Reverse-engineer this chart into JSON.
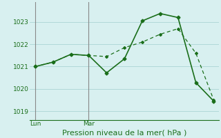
{
  "line1_x": [
    0,
    1,
    2,
    3,
    4,
    5,
    6,
    7,
    8,
    9,
    10
  ],
  "line1_y": [
    1021.0,
    1021.2,
    1021.55,
    1021.5,
    1020.72,
    1021.35,
    1023.05,
    1023.38,
    1023.2,
    1020.28,
    1019.45
  ],
  "line2_x": [
    0,
    1,
    2,
    3,
    4,
    5,
    6,
    7,
    8,
    9,
    10
  ],
  "line2_y": [
    1021.0,
    1021.2,
    1021.55,
    1021.5,
    1021.45,
    1021.85,
    1022.1,
    1022.45,
    1022.7,
    1021.6,
    1019.5
  ],
  "line_color": "#1a6e1a",
  "background_color": "#d8f0f0",
  "grid_color": "#aad4d4",
  "xlabel": "Pression niveau de la mer( hPa )",
  "yticks": [
    1019,
    1020,
    1021,
    1022,
    1023
  ],
  "ylim": [
    1018.6,
    1023.9
  ],
  "xlim": [
    -0.3,
    10.3
  ],
  "lun_x": 0,
  "mar_x": 3,
  "vline_color": "#888888",
  "xlabel_fontsize": 8,
  "tick_fontsize": 6.5
}
